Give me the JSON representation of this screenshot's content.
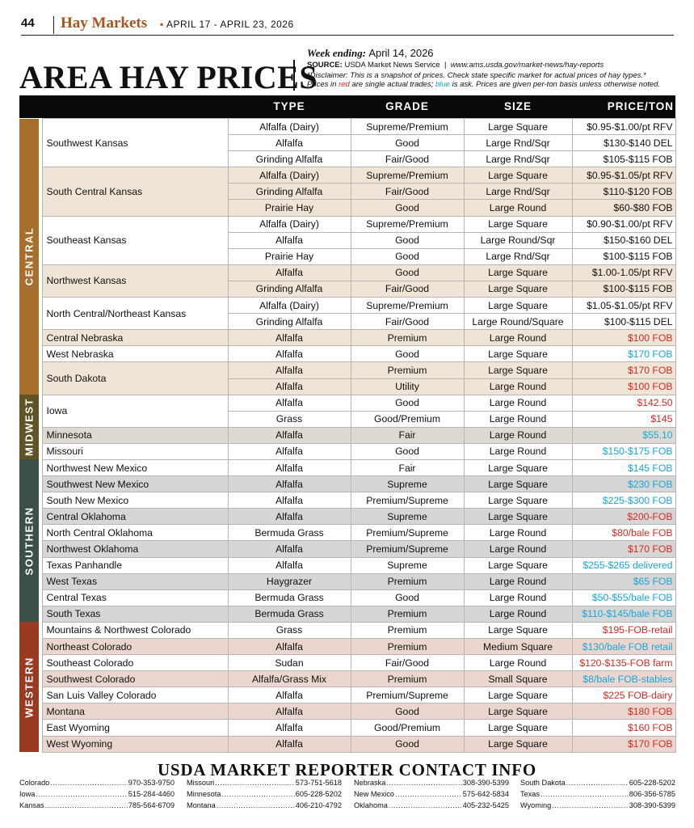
{
  "header": {
    "page_number": "44",
    "magazine": "Hay Markets",
    "dates": "APRIL 17 - APRIL 23, 2026"
  },
  "title": "AREA HAY PRICES",
  "info": {
    "week_label": "Week ending:",
    "week_date": "April 14, 2026",
    "source_label": "SOURCE:",
    "source_text": "USDA Market News Service",
    "source_url": "www.ams.usda.gov/market-news/hay-reports",
    "disclaimer": "*Disclaimer: This is a snapshot of prices. Check state specific market for actual prices of hay types.*",
    "note_prefix": "Prices in ",
    "note_red": "red",
    "note_mid": " are single actual trades; ",
    "note_blue": "blue",
    "note_suffix": " is ask. Prices are given per-ton basis unless otherwise noted."
  },
  "columns": {
    "type": "TYPE",
    "grade": "GRADE",
    "size": "SIZE",
    "price": "PRICE/TON"
  },
  "colors": {
    "central": "#a86e2c",
    "midwest": "#5e5424",
    "southern": "#3d5048",
    "western": "#9a3a20",
    "trade_red": "#d62a23",
    "ask_blue": "#1aa6d8"
  },
  "sections": [
    {
      "name": "CENTRAL",
      "key": "central",
      "groups": [
        {
          "region": "Southwest Kansas",
          "shade": false,
          "rows": [
            {
              "type": "Alfalfa (Dairy)",
              "grade": "Supreme/Premium",
              "size": "Large Square",
              "price": "$0.95-$1.00/pt RFV",
              "color": "black"
            },
            {
              "type": "Alfalfa",
              "grade": "Good",
              "size": "Large Rnd/Sqr",
              "price": "$130-$140 DEL",
              "color": "black"
            },
            {
              "type": "Grinding Alfalfa",
              "grade": "Fair/Good",
              "size": "Large Rnd/Sqr",
              "price": "$105-$115 FOB",
              "color": "black"
            }
          ]
        },
        {
          "region": "South Central Kansas",
          "shade": true,
          "rows": [
            {
              "type": "Alfalfa (Dairy)",
              "grade": "Supreme/Premium",
              "size": "Large Square",
              "price": "$0.95-$1.05/pt RFV",
              "color": "black"
            },
            {
              "type": "Grinding Alfalfa",
              "grade": "Fair/Good",
              "size": "Large Rnd/Sqr",
              "price": "$110-$120 FOB",
              "color": "black"
            },
            {
              "type": "Prairie Hay",
              "grade": "Good",
              "size": "Large Round",
              "price": "$60-$80 FOB",
              "color": "black"
            }
          ]
        },
        {
          "region": "Southeast Kansas",
          "shade": false,
          "rows": [
            {
              "type": "Alfalfa (Dairy)",
              "grade": "Supreme/Premium",
              "size": "Large Square",
              "price": "$0.90-$1.00/pt RFV",
              "color": "black"
            },
            {
              "type": "Alfalfa",
              "grade": "Good",
              "size": "Large Round/Sqr",
              "price": "$150-$160 DEL",
              "color": "black"
            },
            {
              "type": "Prairie Hay",
              "grade": "Good",
              "size": "Large Rnd/Sqr",
              "price": "$100-$115 FOB",
              "color": "black"
            }
          ]
        },
        {
          "region": "Northwest Kansas",
          "shade": true,
          "rows": [
            {
              "type": "Alfalfa",
              "grade": "Good",
              "size": "Large Square",
              "price": "$1.00-1.05/pt RFV",
              "color": "black"
            },
            {
              "type": "Grinding Alfalfa",
              "grade": "Fair/Good",
              "size": "Large Square",
              "price": "$100-$115 FOB",
              "color": "black"
            }
          ]
        },
        {
          "region": "North Central/Northeast Kansas",
          "shade": false,
          "rows": [
            {
              "type": "Alfalfa (Dairy)",
              "grade": "Supreme/Premium",
              "size": "Large Square",
              "price": "$1.05-$1.05/pt RFV",
              "color": "black"
            },
            {
              "type": "Grinding Alfalfa",
              "grade": "Fair/Good",
              "size": "Large Round/Square",
              "price": "$100-$115 DEL",
              "color": "black"
            }
          ]
        },
        {
          "region": "Central Nebraska",
          "shade": true,
          "rows": [
            {
              "type": "Alfalfa",
              "grade": "Premium",
              "size": "Large Round",
              "price": "$100 FOB",
              "color": "red"
            }
          ]
        },
        {
          "region": "West Nebraska",
          "shade": false,
          "rows": [
            {
              "type": "Alfalfa",
              "grade": "Good",
              "size": "Large Square",
              "price": "$170 FOB",
              "color": "blue"
            }
          ]
        },
        {
          "region": "South Dakota",
          "shade": true,
          "rows": [
            {
              "type": "Alfalfa",
              "grade": "Premium",
              "size": "Large Square",
              "price": "$170 FOB",
              "color": "red"
            },
            {
              "type": "Alfalfa",
              "grade": "Utility",
              "size": "Large Round",
              "price": "$100 FOB",
              "color": "red"
            }
          ]
        }
      ]
    },
    {
      "name": "MIDWEST",
      "key": "midwest",
      "groups": [
        {
          "region": "Iowa",
          "shade": false,
          "rows": [
            {
              "type": "Alfalfa",
              "grade": "Good",
              "size": "Large Round",
              "price": "$142.50",
              "color": "red"
            },
            {
              "type": "Grass",
              "grade": "Good/Premium",
              "size": "Large Round",
              "price": "$145",
              "color": "red"
            }
          ]
        },
        {
          "region": "Minnesota",
          "shade": true,
          "rows": [
            {
              "type": "Alfalfa",
              "grade": "Fair",
              "size": "Large Round",
              "price": "$55.10",
              "color": "blue"
            }
          ]
        },
        {
          "region": "Missouri",
          "shade": false,
          "rows": [
            {
              "type": "Alfalfa",
              "grade": "Good",
              "size": "Large Round",
              "price": "$150-$175 FOB",
              "color": "blue"
            }
          ]
        }
      ]
    },
    {
      "name": "SOUTHERN",
      "key": "southern",
      "groups": [
        {
          "region": "Northwest New Mexico",
          "shade": false,
          "rows": [
            {
              "type": "Alfalfa",
              "grade": "Fair",
              "size": "Large Square",
              "price": "$145 FOB",
              "color": "blue"
            }
          ]
        },
        {
          "region": "Southwest New Mexico",
          "shade": true,
          "rows": [
            {
              "type": "Alfalfa",
              "grade": "Supreme",
              "size": "Large Square",
              "price": "$230 FOB",
              "color": "blue"
            }
          ]
        },
        {
          "region": "South New Mexico",
          "shade": false,
          "rows": [
            {
              "type": "Alfalfa",
              "grade": "Premium/Supreme",
              "size": "Large Square",
              "price": "$225-$300 FOB",
              "color": "blue"
            }
          ]
        },
        {
          "region": "Central Oklahoma",
          "shade": true,
          "rows": [
            {
              "type": "Alfalfa",
              "grade": "Supreme",
              "size": "Large Square",
              "price": "$200-FOB",
              "color": "red"
            }
          ]
        },
        {
          "region": "North Central Oklahoma",
          "shade": false,
          "rows": [
            {
              "type": "Bermuda Grass",
              "grade": "Premium/Supreme",
              "size": "Large Round",
              "price": "$80/bale FOB",
              "color": "red"
            }
          ]
        },
        {
          "region": "Northwest Oklahoma",
          "shade": true,
          "rows": [
            {
              "type": "Alfalfa",
              "grade": "Premium/Supreme",
              "size": "Large Round",
              "price": "$170 FOB",
              "color": "red"
            }
          ]
        },
        {
          "region": "Texas Panhandle",
          "shade": false,
          "rows": [
            {
              "type": "Alfalfa",
              "grade": "Supreme",
              "size": "Large Square",
              "price": "$255-$265 delivered",
              "color": "blue"
            }
          ]
        },
        {
          "region": "West Texas",
          "shade": true,
          "rows": [
            {
              "type": "Haygrazer",
              "grade": "Premium",
              "size": "Large Round",
              "price": "$65 FOB",
              "color": "blue"
            }
          ]
        },
        {
          "region": "Central Texas",
          "shade": false,
          "rows": [
            {
              "type": "Bermuda Grass",
              "grade": "Good",
              "size": "Large Round",
              "price": "$50-$55/bale FOB",
              "color": "blue"
            }
          ]
        },
        {
          "region": "South Texas",
          "shade": true,
          "rows": [
            {
              "type": "Bermuda Grass",
              "grade": "Premium",
              "size": "Large Round",
              "price": "$110-$145/bale FOB",
              "color": "blue"
            }
          ]
        }
      ]
    },
    {
      "name": "WESTERN",
      "key": "western",
      "groups": [
        {
          "region": "Mountains & Northwest Colorado",
          "shade": false,
          "rows": [
            {
              "type": "Grass",
              "grade": "Premium",
              "size": "Large Square",
              "price": "$195-FOB-retail",
              "color": "red"
            }
          ]
        },
        {
          "region": "Northeast Colorado",
          "shade": true,
          "rows": [
            {
              "type": "Alfalfa",
              "grade": "Premium",
              "size": "Medium Square",
              "price": "$130/bale FOB retail",
              "color": "blue"
            }
          ]
        },
        {
          "region": "Southeast Colorado",
          "shade": false,
          "rows": [
            {
              "type": "Sudan",
              "grade": "Fair/Good",
              "size": "Large Round",
              "price": "$120-$135-FOB farm",
              "color": "red"
            }
          ]
        },
        {
          "region": "Southwest Colorado",
          "shade": true,
          "rows": [
            {
              "type": "Alfalfa/Grass Mix",
              "grade": "Premium",
              "size": "Small Square",
              "price": "$8/bale FOB-stables",
              "color": "blue"
            }
          ]
        },
        {
          "region": "San Luis Valley Colorado",
          "shade": false,
          "rows": [
            {
              "type": "Alfalfa",
              "grade": "Premium/Supreme",
              "size": "Large Square",
              "price": "$225 FOB-dairy",
              "color": "red"
            }
          ]
        },
        {
          "region": "Montana",
          "shade": true,
          "rows": [
            {
              "type": "Alfalfa",
              "grade": "Good",
              "size": "Large Square",
              "price": "$180 FOB",
              "color": "red"
            }
          ]
        },
        {
          "region": "East Wyoming",
          "shade": false,
          "rows": [
            {
              "type": "Alfalfa",
              "grade": "Good/Premium",
              "size": "Large Square",
              "price": "$160 FOB",
              "color": "red"
            }
          ]
        },
        {
          "region": "West Wyoming",
          "shade": true,
          "rows": [
            {
              "type": "Alfalfa",
              "grade": "Good",
              "size": "Large Square",
              "price": "$170 FOB",
              "color": "red"
            }
          ]
        }
      ]
    }
  ],
  "contact": {
    "title": "USDA MARKET REPORTER CONTACT INFO",
    "columns": [
      [
        {
          "state": "Colorado",
          "phone": "970-353-9750"
        },
        {
          "state": "Iowa",
          "phone": "515-284-4460"
        },
        {
          "state": "Kansas",
          "phone": "785-564-6709"
        }
      ],
      [
        {
          "state": "Missouri",
          "phone": "573-751-5618"
        },
        {
          "state": "Minnesota",
          "phone": "605-228-5202"
        },
        {
          "state": "Montana",
          "phone": "406-210-4792"
        }
      ],
      [
        {
          "state": "Nebraska",
          "phone": "308-390-5399"
        },
        {
          "state": "New Mexico",
          "phone": "575-642-5834"
        },
        {
          "state": "Oklahoma",
          "phone": "405-232-5425"
        }
      ],
      [
        {
          "state": "South Dakota",
          "phone": "605-228-5202"
        },
        {
          "state": "Texas",
          "phone": "806-356-5785"
        },
        {
          "state": "Wyoming",
          "phone": "308-390-5399"
        }
      ]
    ]
  }
}
